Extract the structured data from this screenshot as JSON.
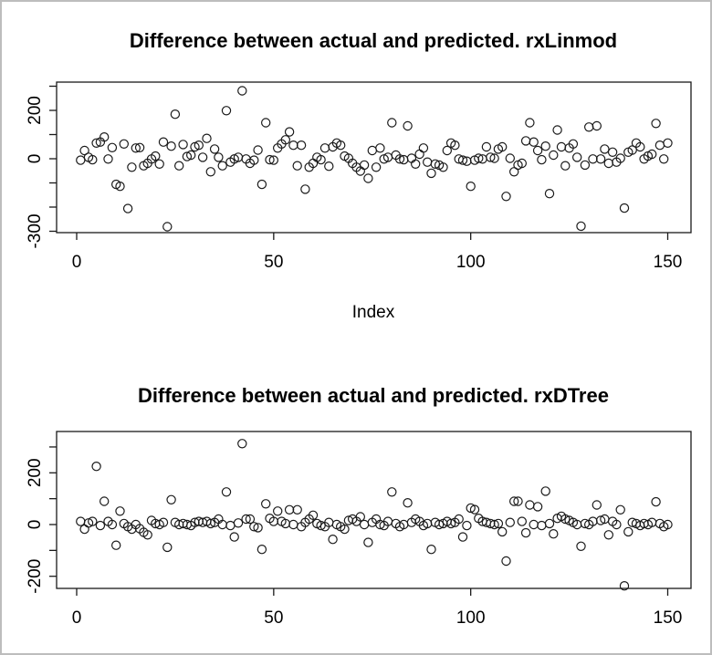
{
  "page": {
    "background": "#ffffff",
    "frame_color": "#bdbdbd",
    "plot_line_color": "#1a1a1a",
    "marker": "open-circle"
  },
  "chart_data": [
    {
      "type": "scatter",
      "title": "Difference between actual and predicted. rxLinmod",
      "xlabel": "Index",
      "ylabel": "",
      "xlim": [
        0,
        155
      ],
      "ylim": [
        -310,
        310
      ],
      "grid": false,
      "legend": "none",
      "x_ticks": [
        {
          "v": 0,
          "label": "0"
        },
        {
          "v": 50,
          "label": "50"
        },
        {
          "v": 100,
          "label": "100"
        },
        {
          "v": 150,
          "label": "150"
        }
      ],
      "y_ticks": [
        {
          "v": 300,
          "label": ""
        },
        {
          "v": 200,
          "label": "200"
        },
        {
          "v": 100,
          "label": ""
        },
        {
          "v": 0,
          "label": "0"
        },
        {
          "v": -100,
          "label": ""
        },
        {
          "v": -200,
          "label": ""
        },
        {
          "v": -300,
          "label": "-300"
        }
      ],
      "points": [
        [
          1,
          -6
        ],
        [
          2,
          34
        ],
        [
          3,
          6
        ],
        [
          4,
          -4
        ],
        [
          5,
          65
        ],
        [
          6,
          69
        ],
        [
          7,
          90
        ],
        [
          8,
          -1
        ],
        [
          9,
          46
        ],
        [
          10,
          -106
        ],
        [
          11,
          -114
        ],
        [
          12,
          61
        ],
        [
          13,
          -206
        ],
        [
          14,
          -35
        ],
        [
          15,
          44
        ],
        [
          16,
          46
        ],
        [
          17,
          -29
        ],
        [
          18,
          -19
        ],
        [
          19,
          -1
        ],
        [
          20,
          11
        ],
        [
          21,
          -22
        ],
        [
          22,
          69
        ],
        [
          23,
          -281
        ],
        [
          24,
          52
        ],
        [
          25,
          184
        ],
        [
          26,
          -29
        ],
        [
          27,
          59
        ],
        [
          28,
          9
        ],
        [
          29,
          15
        ],
        [
          30,
          49
        ],
        [
          31,
          56
        ],
        [
          32,
          6
        ],
        [
          33,
          84
        ],
        [
          34,
          -54
        ],
        [
          35,
          40
        ],
        [
          36,
          6
        ],
        [
          37,
          -29
        ],
        [
          38,
          199
        ],
        [
          39,
          -14
        ],
        [
          40,
          -1
        ],
        [
          41,
          6
        ],
        [
          42,
          281
        ],
        [
          43,
          -1
        ],
        [
          44,
          -19
        ],
        [
          45,
          -6
        ],
        [
          46,
          36
        ],
        [
          47,
          -106
        ],
        [
          48,
          149
        ],
        [
          49,
          -4
        ],
        [
          50,
          -6
        ],
        [
          51,
          44
        ],
        [
          52,
          61
        ],
        [
          53,
          78
        ],
        [
          54,
          111
        ],
        [
          55,
          56
        ],
        [
          56,
          -29
        ],
        [
          57,
          56
        ],
        [
          58,
          -126
        ],
        [
          59,
          -35
        ],
        [
          60,
          -19
        ],
        [
          61,
          6
        ],
        [
          62,
          -4
        ],
        [
          63,
          44
        ],
        [
          64,
          -31
        ],
        [
          65,
          49
        ],
        [
          66,
          65
        ],
        [
          67,
          56
        ],
        [
          68,
          11
        ],
        [
          69,
          2
        ],
        [
          70,
          -19
        ],
        [
          71,
          -35
        ],
        [
          72,
          -51
        ],
        [
          73,
          -26
        ],
        [
          74,
          -81
        ],
        [
          75,
          34
        ],
        [
          76,
          -35
        ],
        [
          77,
          44
        ],
        [
          78,
          -1
        ],
        [
          79,
          6
        ],
        [
          80,
          149
        ],
        [
          81,
          15
        ],
        [
          82,
          -1
        ],
        [
          83,
          -4
        ],
        [
          84,
          136
        ],
        [
          85,
          2
        ],
        [
          86,
          -22
        ],
        [
          87,
          19
        ],
        [
          88,
          44
        ],
        [
          89,
          -14
        ],
        [
          90,
          -60
        ],
        [
          91,
          -22
        ],
        [
          92,
          -26
        ],
        [
          93,
          -35
        ],
        [
          94,
          34
        ],
        [
          95,
          65
        ],
        [
          96,
          56
        ],
        [
          97,
          -1
        ],
        [
          98,
          -6
        ],
        [
          99,
          -10
        ],
        [
          100,
          -114
        ],
        [
          101,
          -6
        ],
        [
          102,
          2
        ],
        [
          103,
          -1
        ],
        [
          104,
          49
        ],
        [
          105,
          6
        ],
        [
          106,
          2
        ],
        [
          107,
          40
        ],
        [
          108,
          49
        ],
        [
          109,
          -156
        ],
        [
          110,
          2
        ],
        [
          111,
          -54
        ],
        [
          112,
          -26
        ],
        [
          113,
          -19
        ],
        [
          114,
          74
        ],
        [
          115,
          149
        ],
        [
          116,
          69
        ],
        [
          117,
          34
        ],
        [
          118,
          -4
        ],
        [
          119,
          52
        ],
        [
          120,
          -144
        ],
        [
          121,
          15
        ],
        [
          122,
          119
        ],
        [
          123,
          49
        ],
        [
          124,
          -29
        ],
        [
          125,
          44
        ],
        [
          126,
          61
        ],
        [
          127,
          6
        ],
        [
          128,
          -279
        ],
        [
          129,
          -26
        ],
        [
          130,
          131
        ],
        [
          131,
          -1
        ],
        [
          132,
          136
        ],
        [
          133,
          -1
        ],
        [
          134,
          40
        ],
        [
          135,
          -19
        ],
        [
          136,
          27
        ],
        [
          137,
          -14
        ],
        [
          138,
          2
        ],
        [
          139,
          -204
        ],
        [
          140,
          27
        ],
        [
          141,
          36
        ],
        [
          142,
          65
        ],
        [
          143,
          49
        ],
        [
          144,
          -1
        ],
        [
          145,
          11
        ],
        [
          146,
          19
        ],
        [
          147,
          146
        ],
        [
          148,
          56
        ],
        [
          149,
          -1
        ],
        [
          150,
          65
        ]
      ]
    },
    {
      "type": "scatter",
      "title": "Difference between actual and predicted. rxDTree",
      "xlabel": "",
      "ylabel": "",
      "xlim": [
        0,
        155
      ],
      "ylim": [
        -270,
        340
      ],
      "grid": false,
      "legend": "none",
      "x_ticks": [
        {
          "v": 0,
          "label": "0"
        },
        {
          "v": 50,
          "label": "50"
        },
        {
          "v": 100,
          "label": "100"
        },
        {
          "v": 150,
          "label": "150"
        }
      ],
      "y_ticks": [
        {
          "v": 300,
          "label": ""
        },
        {
          "v": 200,
          "label": "200"
        },
        {
          "v": 100,
          "label": ""
        },
        {
          "v": 0,
          "label": "0"
        },
        {
          "v": -100,
          "label": ""
        },
        {
          "v": -200,
          "label": "-200"
        }
      ],
      "points": [
        [
          1,
          12
        ],
        [
          2,
          -18
        ],
        [
          3,
          6
        ],
        [
          4,
          12
        ],
        [
          5,
          225
        ],
        [
          6,
          -4
        ],
        [
          7,
          90
        ],
        [
          8,
          12
        ],
        [
          9,
          0
        ],
        [
          10,
          -80
        ],
        [
          11,
          52
        ],
        [
          12,
          4
        ],
        [
          13,
          -8
        ],
        [
          14,
          -18
        ],
        [
          15,
          0
        ],
        [
          16,
          -16
        ],
        [
          17,
          -30
        ],
        [
          18,
          -40
        ],
        [
          19,
          16
        ],
        [
          20,
          4
        ],
        [
          21,
          0
        ],
        [
          22,
          8
        ],
        [
          23,
          -88
        ],
        [
          24,
          96
        ],
        [
          25,
          8
        ],
        [
          26,
          0
        ],
        [
          27,
          4
        ],
        [
          28,
          0
        ],
        [
          29,
          -4
        ],
        [
          30,
          8
        ],
        [
          31,
          12
        ],
        [
          32,
          8
        ],
        [
          33,
          12
        ],
        [
          34,
          4
        ],
        [
          35,
          8
        ],
        [
          36,
          21
        ],
        [
          37,
          0
        ],
        [
          38,
          126
        ],
        [
          39,
          -4
        ],
        [
          40,
          -48
        ],
        [
          41,
          6
        ],
        [
          42,
          313
        ],
        [
          43,
          21
        ],
        [
          44,
          21
        ],
        [
          45,
          -8
        ],
        [
          46,
          -12
        ],
        [
          47,
          -96
        ],
        [
          48,
          80
        ],
        [
          49,
          24
        ],
        [
          50,
          12
        ],
        [
          51,
          52
        ],
        [
          52,
          12
        ],
        [
          53,
          4
        ],
        [
          54,
          57
        ],
        [
          55,
          0
        ],
        [
          56,
          57
        ],
        [
          57,
          -8
        ],
        [
          58,
          8
        ],
        [
          59,
          21
        ],
        [
          60,
          36
        ],
        [
          61,
          4
        ],
        [
          62,
          -4
        ],
        [
          63,
          -8
        ],
        [
          64,
          8
        ],
        [
          65,
          -57
        ],
        [
          66,
          0
        ],
        [
          67,
          -8
        ],
        [
          68,
          -18
        ],
        [
          69,
          16
        ],
        [
          70,
          21
        ],
        [
          71,
          12
        ],
        [
          72,
          30
        ],
        [
          73,
          0
        ],
        [
          74,
          -69
        ],
        [
          75,
          8
        ],
        [
          76,
          21
        ],
        [
          77,
          0
        ],
        [
          78,
          -4
        ],
        [
          79,
          12
        ],
        [
          80,
          126
        ],
        [
          81,
          4
        ],
        [
          82,
          -8
        ],
        [
          83,
          0
        ],
        [
          84,
          84
        ],
        [
          85,
          8
        ],
        [
          86,
          21
        ],
        [
          87,
          12
        ],
        [
          88,
          -4
        ],
        [
          89,
          4
        ],
        [
          90,
          -96
        ],
        [
          91,
          8
        ],
        [
          92,
          0
        ],
        [
          93,
          4
        ],
        [
          94,
          12
        ],
        [
          95,
          4
        ],
        [
          96,
          8
        ],
        [
          97,
          21
        ],
        [
          98,
          -48
        ],
        [
          99,
          -4
        ],
        [
          100,
          64
        ],
        [
          101,
          58
        ],
        [
          102,
          24
        ],
        [
          103,
          12
        ],
        [
          104,
          8
        ],
        [
          105,
          4
        ],
        [
          106,
          0
        ],
        [
          107,
          4
        ],
        [
          108,
          -28
        ],
        [
          109,
          -141
        ],
        [
          110,
          8
        ],
        [
          111,
          90
        ],
        [
          112,
          90
        ],
        [
          113,
          12
        ],
        [
          114,
          -32
        ],
        [
          115,
          76
        ],
        [
          116,
          0
        ],
        [
          117,
          69
        ],
        [
          118,
          -4
        ],
        [
          119,
          129
        ],
        [
          120,
          4
        ],
        [
          121,
          -36
        ],
        [
          122,
          24
        ],
        [
          123,
          32
        ],
        [
          124,
          21
        ],
        [
          125,
          16
        ],
        [
          126,
          8
        ],
        [
          127,
          0
        ],
        [
          128,
          -84
        ],
        [
          129,
          4
        ],
        [
          130,
          0
        ],
        [
          131,
          12
        ],
        [
          132,
          76
        ],
        [
          133,
          16
        ],
        [
          134,
          21
        ],
        [
          135,
          -40
        ],
        [
          136,
          12
        ],
        [
          137,
          0
        ],
        [
          138,
          57
        ],
        [
          139,
          -237
        ],
        [
          140,
          -28
        ],
        [
          141,
          8
        ],
        [
          142,
          4
        ],
        [
          143,
          -4
        ],
        [
          144,
          4
        ],
        [
          145,
          0
        ],
        [
          146,
          8
        ],
        [
          147,
          88
        ],
        [
          148,
          4
        ],
        [
          149,
          -8
        ],
        [
          150,
          0
        ]
      ]
    }
  ]
}
